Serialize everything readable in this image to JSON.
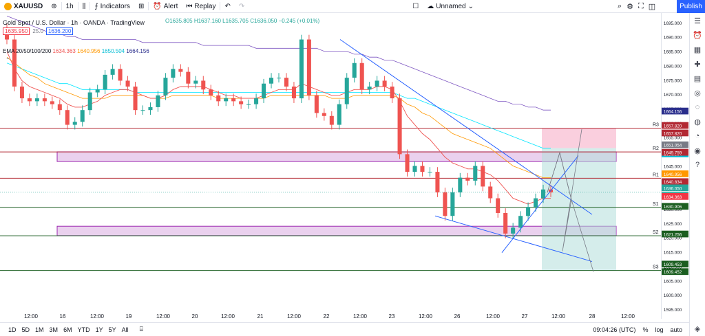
{
  "toolbar": {
    "symbol": "XAUUSD",
    "interval": "1h",
    "indicators_label": "Indicators",
    "alert_label": "Alert",
    "replay_label": "Replay",
    "layout_name": "Unnamed",
    "publish_label": "Publish"
  },
  "legend": {
    "title": "Gold Spot / U.S. Dollar · 1h · OANDA · TradingView",
    "sell_price": "1635.950",
    "spread": "25.0",
    "buy_price": "1636.200",
    "ohlc": "O1635.805 H1637.160 L1635.705 C1636.050 −0.245 (+0.01%)",
    "ema_label": "EMA 20/50/100/200",
    "ema20": "1634.363",
    "ema50": "1640.956",
    "ema100": "1650.504",
    "ema200": "1664.156"
  },
  "price_ticks": [
    "1695.000",
    "1690.000",
    "1685.000",
    "1680.000",
    "1675.000",
    "1670.000",
    "1665.000",
    "1660.000",
    "1655.000",
    "1650.000",
    "1645.000",
    "1640.000",
    "1635.000",
    "1630.000",
    "1625.000",
    "1620.000",
    "1615.000",
    "1610.000",
    "1605.000",
    "1600.000",
    "1595.000"
  ],
  "price_tags": [
    {
      "text": "1664.156",
      "color": "#2a2e8c"
    },
    {
      "text": "1657.820",
      "color": "#b22833"
    },
    {
      "text": "1657.820",
      "color": "#b22833"
    },
    {
      "text": "1651.054",
      "color": "#787b86"
    },
    {
      "text": "1650.504",
      "color": "#00bcd4"
    },
    {
      "text": "1649.759",
      "color": "#b22833"
    },
    {
      "text": "1640.956",
      "color": "#ff9800"
    },
    {
      "text": "1640.834",
      "color": "#b22833"
    },
    {
      "text": "1636.050",
      "color": "#26a69a"
    },
    {
      "text": "55:31",
      "color": "#26a69a"
    },
    {
      "text": "1634.363",
      "color": "#f23645"
    },
    {
      "text": "1630.906",
      "color": "#1b5e20"
    },
    {
      "text": "1621.256",
      "color": "#1b5e20"
    },
    {
      "text": "1609.453",
      "color": "#1b5e20"
    },
    {
      "text": "1609.452",
      "color": "#1b5e20"
    }
  ],
  "levels": [
    {
      "label": "R3",
      "price": 1657.82,
      "color": "#b22833"
    },
    {
      "label": "R2",
      "price": 1649.759,
      "color": "#b22833"
    },
    {
      "label": "R1",
      "price": 1640.834,
      "color": "#b22833"
    },
    {
      "label": "S1",
      "price": 1630.906,
      "color": "#1b5e20"
    },
    {
      "label": "S2",
      "price": 1621.256,
      "color": "#1b5e20"
    },
    {
      "label": "S3",
      "price": 1609.453,
      "color": "#1b5e20"
    }
  ],
  "time_labels": [
    "12:00",
    "16",
    "12:00",
    "19",
    "12:00",
    "20",
    "12:00",
    "21",
    "12:00",
    "22",
    "12:00",
    "23",
    "12:00",
    "26",
    "12:00",
    "27",
    "12:00",
    "28",
    "12:00"
  ],
  "ranges": [
    "1D",
    "5D",
    "1M",
    "3M",
    "6M",
    "YTD",
    "1Y",
    "5Y",
    "All"
  ],
  "bottom_right": {
    "time": "09:04:26 (UTC)",
    "percent": "%",
    "log": "log",
    "auto": "auto"
  },
  "colors": {
    "up": "#26a69a",
    "down": "#ef5350",
    "ema20": "#ef5350",
    "ema50": "#ff9800",
    "ema100": "#00e5ff",
    "ema200": "#7e57c2",
    "zone": "#e1bee7"
  },
  "chart_data": {
    "type": "line",
    "title": "Gold Spot / U.S. Dollar · 1h · OANDA",
    "ylim": [
      1593,
      1697
    ],
    "close": [
      1688,
      1672,
      1668,
      1667,
      1668,
      1667,
      1666,
      1664,
      1659,
      1660,
      1664,
      1670,
      1671,
      1676,
      1678,
      1674,
      1672,
      1664,
      1664,
      1665,
      1669,
      1675,
      1678,
      1677,
      1673,
      1674,
      1671,
      1669,
      1667,
      1668,
      1667,
      1666,
      1666,
      1668,
      1673,
      1675,
      1675,
      1672,
      1668,
      1688,
      1669,
      1663,
      1662,
      1659,
      1666,
      1675,
      1680,
      1671,
      1672,
      1674,
      1672,
      1668,
      1649,
      1643,
      1645,
      1643,
      1643,
      1636,
      1628,
      1636,
      1641,
      1640,
      1645,
      1638,
      1634,
      1629,
      1622,
      1624,
      1628,
      1631,
      1634,
      1637,
      1636
    ],
    "ema20": [
      1684,
      1678,
      1674,
      1672,
      1671,
      1670,
      1669,
      1668,
      1666,
      1665,
      1665,
      1666,
      1667,
      1669,
      1670,
      1671,
      1671,
      1670,
      1669,
      1668,
      1668,
      1669,
      1671,
      1672,
      1672,
      1672,
      1672,
      1671,
      1670,
      1669,
      1669,
      1668,
      1668,
      1668,
      1669,
      1670,
      1671,
      1671,
      1671,
      1673,
      1672,
      1671,
      1670,
      1669,
      1669,
      1670,
      1671,
      1671,
      1671,
      1672,
      1672,
      1671,
      1667,
      1662,
      1659,
      1656,
      1654,
      1651,
      1648,
      1646,
      1645,
      1644,
      1644,
      1643,
      1642,
      1640,
      1637,
      1634,
      1633,
      1632,
      1633,
      1634,
      1634
    ],
    "ema50": [
      1682,
      1680,
      1678,
      1676,
      1675,
      1673,
      1672,
      1671,
      1670,
      1669,
      1668,
      1668,
      1668,
      1668,
      1669,
      1669,
      1669,
      1669,
      1669,
      1668,
      1668,
      1668,
      1669,
      1669,
      1669,
      1669,
      1669,
      1669,
      1668,
      1668,
      1668,
      1668,
      1668,
      1668,
      1668,
      1669,
      1669,
      1669,
      1669,
      1669,
      1669,
      1669,
      1669,
      1668,
      1668,
      1668,
      1669,
      1669,
      1669,
      1669,
      1669,
      1669,
      1668,
      1666,
      1665,
      1663,
      1662,
      1660,
      1658,
      1656,
      1655,
      1654,
      1653,
      1652,
      1651,
      1649,
      1647,
      1645,
      1644,
      1643,
      1642,
      1641,
      1641
    ],
    "ema100": [
      1680,
      1679,
      1678,
      1677,
      1676,
      1675,
      1674,
      1673,
      1673,
      1672,
      1671,
      1671,
      1671,
      1671,
      1671,
      1671,
      1671,
      1670,
      1670,
      1670,
      1670,
      1670,
      1670,
      1670,
      1670,
      1670,
      1670,
      1670,
      1670,
      1670,
      1670,
      1670,
      1670,
      1670,
      1670,
      1670,
      1670,
      1670,
      1670,
      1670,
      1670,
      1670,
      1670,
      1670,
      1670,
      1670,
      1670,
      1670,
      1670,
      1670,
      1670,
      1670,
      1669,
      1668,
      1668,
      1667,
      1666,
      1665,
      1664,
      1663,
      1662,
      1661,
      1660,
      1659,
      1658,
      1657,
      1656,
      1655,
      1654,
      1653,
      1652,
      1651,
      1651
    ],
    "ema200": [
      1696,
      1695,
      1694,
      1693,
      1692,
      1691,
      1690,
      1690,
      1689,
      1689,
      1688,
      1688,
      1688,
      1688,
      1688,
      1688,
      1688,
      1688,
      1687,
      1687,
      1687,
      1687,
      1687,
      1687,
      1687,
      1687,
      1686,
      1686,
      1686,
      1686,
      1686,
      1686,
      1686,
      1685,
      1685,
      1685,
      1685,
      1685,
      1685,
      1685,
      1685,
      1685,
      1684,
      1684,
      1684,
      1684,
      1683,
      1683,
      1682,
      1682,
      1681,
      1681,
      1680,
      1679,
      1678,
      1677,
      1676,
      1675,
      1674,
      1673,
      1672,
      1671,
      1670,
      1669,
      1668,
      1667,
      1667,
      1666,
      1666,
      1665,
      1665,
      1664,
      1664
    ]
  }
}
